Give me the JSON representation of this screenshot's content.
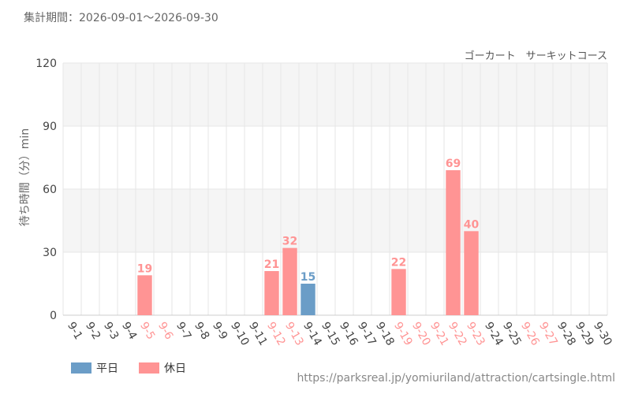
{
  "header": {
    "period_label": "集計期間：2026-09-01～2026-09-30"
  },
  "chart_data": {
    "type": "bar",
    "title": "ゴーカート　サーキットコース",
    "ylabel": "待ち時間（分）min",
    "xlabel": "",
    "ylim": [
      0,
      120
    ],
    "yticks": [
      0,
      30,
      60,
      90,
      120
    ],
    "grid": true,
    "categories": [
      "9-1",
      "9-2",
      "9-3",
      "9-4",
      "9-5",
      "9-6",
      "9-7",
      "9-8",
      "9-9",
      "9-10",
      "9-11",
      "9-12",
      "9-13",
      "9-14",
      "9-15",
      "9-16",
      "9-17",
      "9-18",
      "9-19",
      "9-20",
      "9-21",
      "9-22",
      "9-23",
      "9-24",
      "9-25",
      "9-26",
      "9-27",
      "9-28",
      "9-29",
      "9-30"
    ],
    "values": [
      null,
      null,
      null,
      null,
      19,
      null,
      null,
      null,
      null,
      null,
      null,
      21,
      32,
      15,
      null,
      null,
      null,
      null,
      22,
      null,
      null,
      69,
      40,
      null,
      null,
      null,
      null,
      null,
      null,
      null
    ],
    "day_type": [
      "weekday",
      "weekday",
      "weekday",
      "weekday",
      "holiday",
      "holiday",
      "weekday",
      "weekday",
      "weekday",
      "weekday",
      "weekday",
      "holiday",
      "holiday",
      "weekday",
      "weekday",
      "weekday",
      "weekday",
      "weekday",
      "holiday",
      "holiday",
      "holiday",
      "holiday",
      "holiday",
      "weekday",
      "weekday",
      "holiday",
      "holiday",
      "weekday",
      "weekday",
      "weekday"
    ],
    "legend": [
      {
        "key": "weekday",
        "name": "平日",
        "color": "#6b9dc7"
      },
      {
        "key": "holiday",
        "name": "休日",
        "color": "#ff9494"
      }
    ],
    "legend_position": "bottom-left"
  },
  "footer": {
    "source_url": "https://parksreal.jp/yomiuriland/attraction/cartsingle.html"
  }
}
